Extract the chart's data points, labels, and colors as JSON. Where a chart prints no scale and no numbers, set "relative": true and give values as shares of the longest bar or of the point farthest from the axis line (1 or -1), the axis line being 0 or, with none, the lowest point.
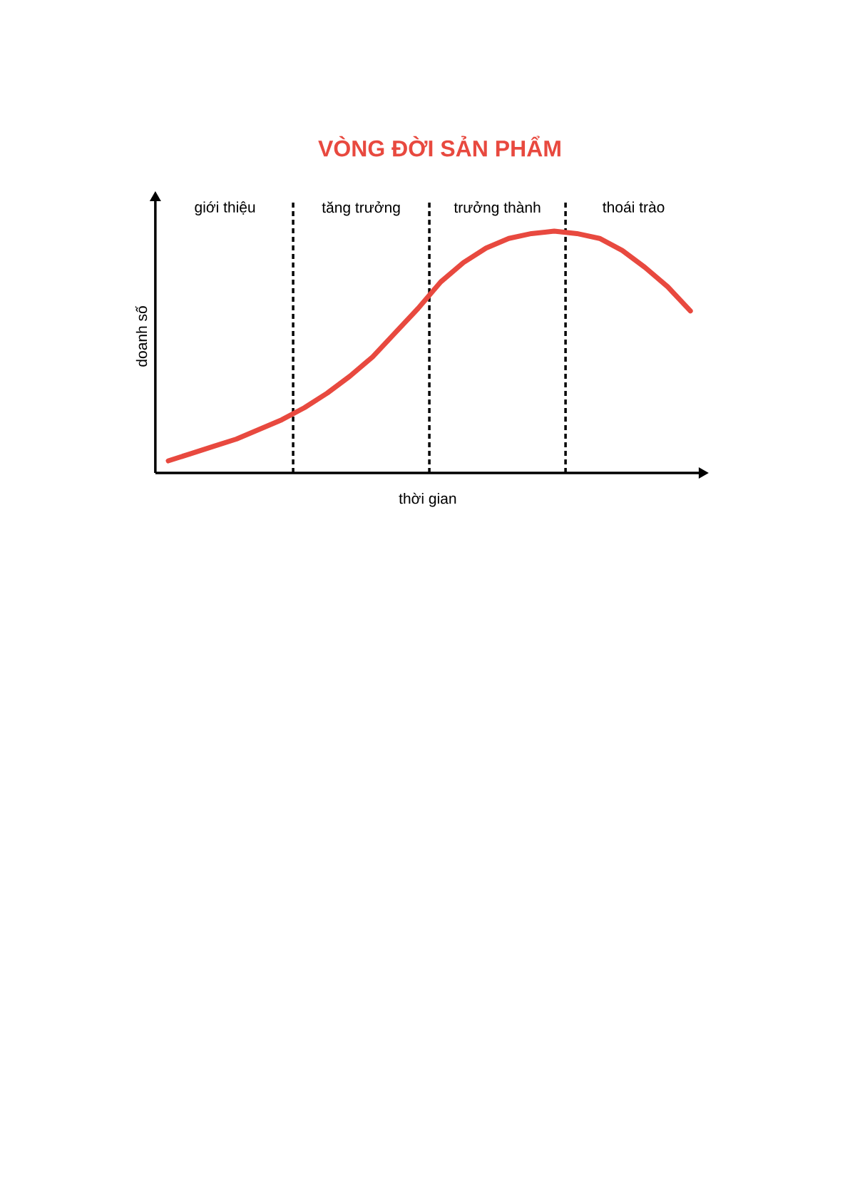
{
  "chart_data": {
    "type": "line",
    "title": "VÒNG ĐỜI SẢN PHẨM",
    "xlabel": "thời gian",
    "ylabel": "doanh số",
    "relative": true,
    "color": "#e8493f",
    "categories": [
      null,
      null,
      null,
      null,
      null,
      null,
      null,
      null,
      null,
      null,
      null,
      null,
      null,
      null,
      null,
      null,
      null,
      null,
      null,
      null,
      null,
      null,
      null,
      null
    ],
    "values": [
      0.05,
      0.08,
      0.11,
      0.14,
      0.18,
      0.22,
      0.27,
      0.33,
      0.4,
      0.48,
      0.58,
      0.68,
      0.79,
      0.87,
      0.93,
      0.97,
      0.99,
      1.0,
      0.99,
      0.97,
      0.92,
      0.85,
      0.77,
      0.67
    ],
    "annotations": [
      "giới thiệu",
      "tăng trưởng",
      "trưởng thành",
      "thoái trào"
    ]
  }
}
